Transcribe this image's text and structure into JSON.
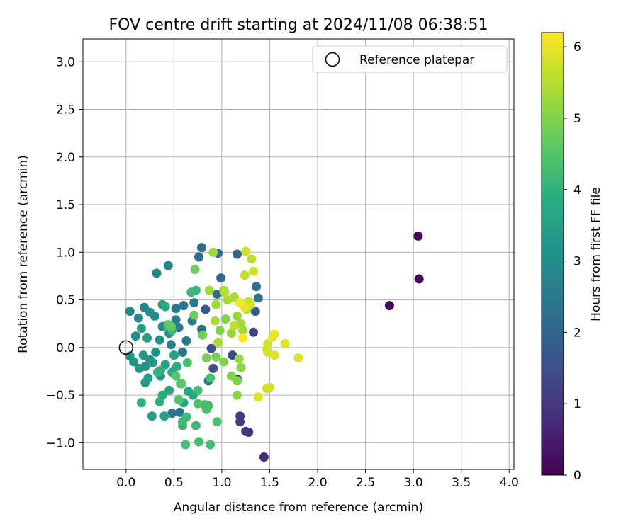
{
  "chart_data": {
    "type": "scatter",
    "title": "FOV centre drift starting at 2024/11/08 06:38:51",
    "xlabel": "Angular distance from reference (arcmin)",
    "ylabel": "Rotation from reference (arcmin)",
    "xlim": [
      -0.45,
      4.05
    ],
    "ylim": [
      -1.28,
      3.24
    ],
    "xticks": [
      "0.0",
      "0.5",
      "1.0",
      "1.5",
      "2.0",
      "2.5",
      "3.0",
      "3.5",
      "4.0"
    ],
    "xtick_values": [
      0,
      0.5,
      1,
      1.5,
      2,
      2.5,
      3,
      3.5,
      4
    ],
    "yticks": [
      "−1.0",
      "−0.5",
      "0.0",
      "0.5",
      "1.0",
      "1.5",
      "2.0",
      "2.5",
      "3.0"
    ],
    "ytick_values": [
      -1,
      -0.5,
      0,
      0.5,
      1,
      1.5,
      2,
      2.5,
      3
    ],
    "grid": true,
    "legend": {
      "label": "Reference platepar",
      "position": "top-right"
    },
    "reference_point": {
      "x": 0,
      "y": 0
    },
    "colorbar": {
      "label": "Hours from first FF file",
      "colormap": "viridis",
      "range": [
        0,
        6.2
      ],
      "ticks": [
        "0",
        "1",
        "2",
        "3",
        "4",
        "5",
        "6"
      ],
      "tick_values": [
        0,
        1,
        2,
        3,
        4,
        5,
        6
      ]
    },
    "series": [
      {
        "points": [
          [
            3.05,
            1.17,
            0.1
          ],
          [
            3.06,
            0.72,
            0.1
          ],
          [
            2.75,
            0.44,
            0.2
          ],
          [
            1.44,
            -1.15,
            0.7
          ],
          [
            1.25,
            -0.88,
            1.0
          ],
          [
            1.28,
            -0.89,
            1.0
          ],
          [
            1.19,
            -0.72,
            1.1
          ],
          [
            1.19,
            -0.78,
            1.1
          ],
          [
            1.33,
            0.16,
            1.2
          ],
          [
            0.91,
            -0.22,
            1.5
          ],
          [
            1.11,
            -0.08,
            1.4
          ],
          [
            0.89,
            -0.01,
            1.6
          ],
          [
            1.16,
            -0.33,
            1.6
          ],
          [
            1.35,
            0.38,
            1.8
          ],
          [
            0.83,
            0.4,
            1.8
          ],
          [
            0.99,
            0.73,
            2.0
          ],
          [
            1.16,
            0.98,
            2.0
          ],
          [
            0.96,
            0.99,
            2.0
          ],
          [
            0.79,
            1.05,
            2.2
          ],
          [
            0.76,
            0.95,
            2.2
          ],
          [
            1.36,
            0.64,
            2.2
          ],
          [
            1.38,
            0.52,
            2.3
          ],
          [
            0.95,
            0.56,
            2.2
          ],
          [
            0.79,
            0.19,
            2.2
          ],
          [
            0.86,
            -0.35,
            2.3
          ],
          [
            0.56,
            -0.68,
            2.3
          ],
          [
            0.48,
            -0.69,
            2.4
          ],
          [
            0.52,
            0.41,
            2.4
          ],
          [
            0.6,
            0.44,
            2.4
          ],
          [
            0.69,
            0.28,
            2.5
          ],
          [
            0.71,
            0.47,
            2.5
          ],
          [
            0.55,
            0.21,
            2.5
          ],
          [
            0.63,
            0.07,
            2.6
          ],
          [
            0.52,
            0.29,
            2.6
          ],
          [
            0.59,
            -0.05,
            2.5
          ],
          [
            0.47,
            0.03,
            2.7
          ],
          [
            0.44,
            0.86,
            2.8
          ],
          [
            0.32,
            0.78,
            2.8
          ],
          [
            0.19,
            0.42,
            2.8
          ],
          [
            0.04,
            0.38,
            2.9
          ],
          [
            0.1,
            0.12,
            2.9
          ],
          [
            0.13,
            0.31,
            2.9
          ],
          [
            0.25,
            0.37,
            3.0
          ],
          [
            0.3,
            0.33,
            3.0
          ],
          [
            0.38,
            0.22,
            3.0
          ],
          [
            0.45,
            0.15,
            3.0
          ],
          [
            0.35,
            0.08,
            3.1
          ],
          [
            0.31,
            -0.05,
            3.1
          ],
          [
            0.25,
            -0.13,
            3.1
          ],
          [
            0.2,
            -0.2,
            3.2
          ],
          [
            0.14,
            -0.22,
            3.2
          ],
          [
            0.08,
            -0.15,
            3.2
          ],
          [
            0.04,
            -0.09,
            3.2
          ],
          [
            0.18,
            -0.08,
            3.3
          ],
          [
            0.28,
            -0.16,
            3.3
          ],
          [
            0.36,
            -0.3,
            3.3
          ],
          [
            0.23,
            -0.32,
            3.4
          ],
          [
            0.2,
            -0.37,
            3.4
          ],
          [
            0.16,
            0.2,
            3.4
          ],
          [
            0.22,
            0.1,
            3.4
          ],
          [
            0.38,
            0.45,
            3.4
          ],
          [
            0.41,
            -0.18,
            3.5
          ],
          [
            0.5,
            -0.08,
            3.5
          ],
          [
            0.27,
            -0.72,
            3.5
          ],
          [
            0.4,
            -0.72,
            3.5
          ],
          [
            0.45,
            -0.45,
            3.6
          ],
          [
            0.6,
            -0.58,
            3.6
          ],
          [
            0.7,
            -0.5,
            3.7
          ],
          [
            0.65,
            -0.46,
            3.7
          ],
          [
            0.57,
            -0.38,
            3.8
          ],
          [
            0.53,
            -0.2,
            3.8
          ],
          [
            0.48,
            -0.26,
            3.8
          ],
          [
            0.38,
            -0.5,
            3.9
          ],
          [
            0.35,
            -0.57,
            3.9
          ],
          [
            0.16,
            -0.58,
            3.9
          ],
          [
            0.33,
            -0.26,
            4.0
          ],
          [
            0.36,
            -0.24,
            4.0
          ],
          [
            0.41,
            0.43,
            3.8
          ],
          [
            0.68,
            0.58,
            4.1
          ],
          [
            0.73,
            0.6,
            4.1
          ],
          [
            0.48,
            0.18,
            4.1
          ],
          [
            0.59,
            -0.82,
            4.2
          ],
          [
            0.63,
            -0.73,
            4.2
          ],
          [
            0.59,
            -0.78,
            4.2
          ],
          [
            0.73,
            -0.82,
            4.2
          ],
          [
            0.82,
            -0.6,
            4.3
          ],
          [
            0.86,
            -0.61,
            4.3
          ],
          [
            0.84,
            -0.65,
            4.3
          ],
          [
            0.75,
            -0.45,
            4.2
          ],
          [
            0.62,
            -1.02,
            4.3
          ],
          [
            0.76,
            -0.99,
            4.3
          ],
          [
            0.88,
            -1.02,
            4.3
          ],
          [
            0.95,
            -0.78,
            4.4
          ],
          [
            0.88,
            -0.32,
            4.3
          ],
          [
            0.64,
            -0.16,
            4.4
          ],
          [
            0.75,
            -0.59,
            4.4
          ],
          [
            0.55,
            -0.55,
            4.5
          ],
          [
            0.58,
            -0.38,
            4.6
          ],
          [
            0.52,
            -0.3,
            4.6
          ],
          [
            0.44,
            0.24,
            4.6
          ],
          [
            0.47,
            0.22,
            4.7
          ],
          [
            0.71,
            0.34,
            4.8
          ],
          [
            0.8,
            0.13,
            4.8
          ],
          [
            0.72,
            0.82,
            4.8
          ],
          [
            0.84,
            -0.11,
            4.9
          ],
          [
            0.94,
            -0.1,
            4.9
          ],
          [
            1.02,
            -0.15,
            5.0
          ],
          [
            0.98,
            0.18,
            5.0
          ],
          [
            1.04,
            0.3,
            5.0
          ],
          [
            1.1,
            -0.3,
            5.0
          ],
          [
            1.16,
            -0.35,
            5.0
          ],
          [
            1.16,
            -0.5,
            5.1
          ],
          [
            1.2,
            -0.21,
            5.1
          ],
          [
            1.18,
            -0.12,
            5.2
          ],
          [
            1.1,
            0.15,
            5.2
          ],
          [
            1.16,
            0.33,
            5.2
          ],
          [
            1.22,
            0.18,
            5.3
          ],
          [
            1.2,
            0.25,
            5.3
          ],
          [
            1.02,
            0.6,
            5.3
          ],
          [
            1.13,
            0.53,
            5.4
          ],
          [
            1.06,
            0.5,
            5.4
          ],
          [
            0.94,
            0.45,
            5.3
          ],
          [
            0.93,
            0.28,
            5.4
          ],
          [
            0.87,
            0.6,
            5.3
          ],
          [
            0.91,
            1.0,
            5.3
          ],
          [
            0.96,
            0.05,
            5.4
          ],
          [
            1.03,
            0.58,
            5.5
          ],
          [
            1.13,
            0.23,
            5.6
          ],
          [
            1.24,
            0.76,
            5.6
          ],
          [
            1.31,
            0.93,
            5.6
          ],
          [
            1.25,
            1.01,
            5.7
          ],
          [
            1.33,
            0.8,
            5.7
          ],
          [
            1.3,
            0.45,
            5.7
          ],
          [
            1.28,
            0.48,
            5.7
          ],
          [
            1.26,
            0.4,
            5.6
          ],
          [
            1.47,
            -0.02,
            5.7
          ],
          [
            1.48,
            -0.05,
            5.8
          ],
          [
            1.48,
            0.04,
            5.8
          ],
          [
            1.55,
            -0.08,
            5.9
          ],
          [
            1.66,
            0.04,
            5.9
          ],
          [
            1.8,
            -0.11,
            5.9
          ],
          [
            1.55,
            0.14,
            6.0
          ],
          [
            1.53,
            0.11,
            6.0
          ],
          [
            1.5,
            -0.42,
            5.8
          ],
          [
            1.47,
            -0.43,
            5.8
          ],
          [
            1.38,
            -0.52,
            5.9
          ],
          [
            1.24,
            0.42,
            6.0
          ],
          [
            1.19,
            0.47,
            6.1
          ],
          [
            1.22,
            0.1,
            6.2
          ]
        ]
      }
    ]
  }
}
